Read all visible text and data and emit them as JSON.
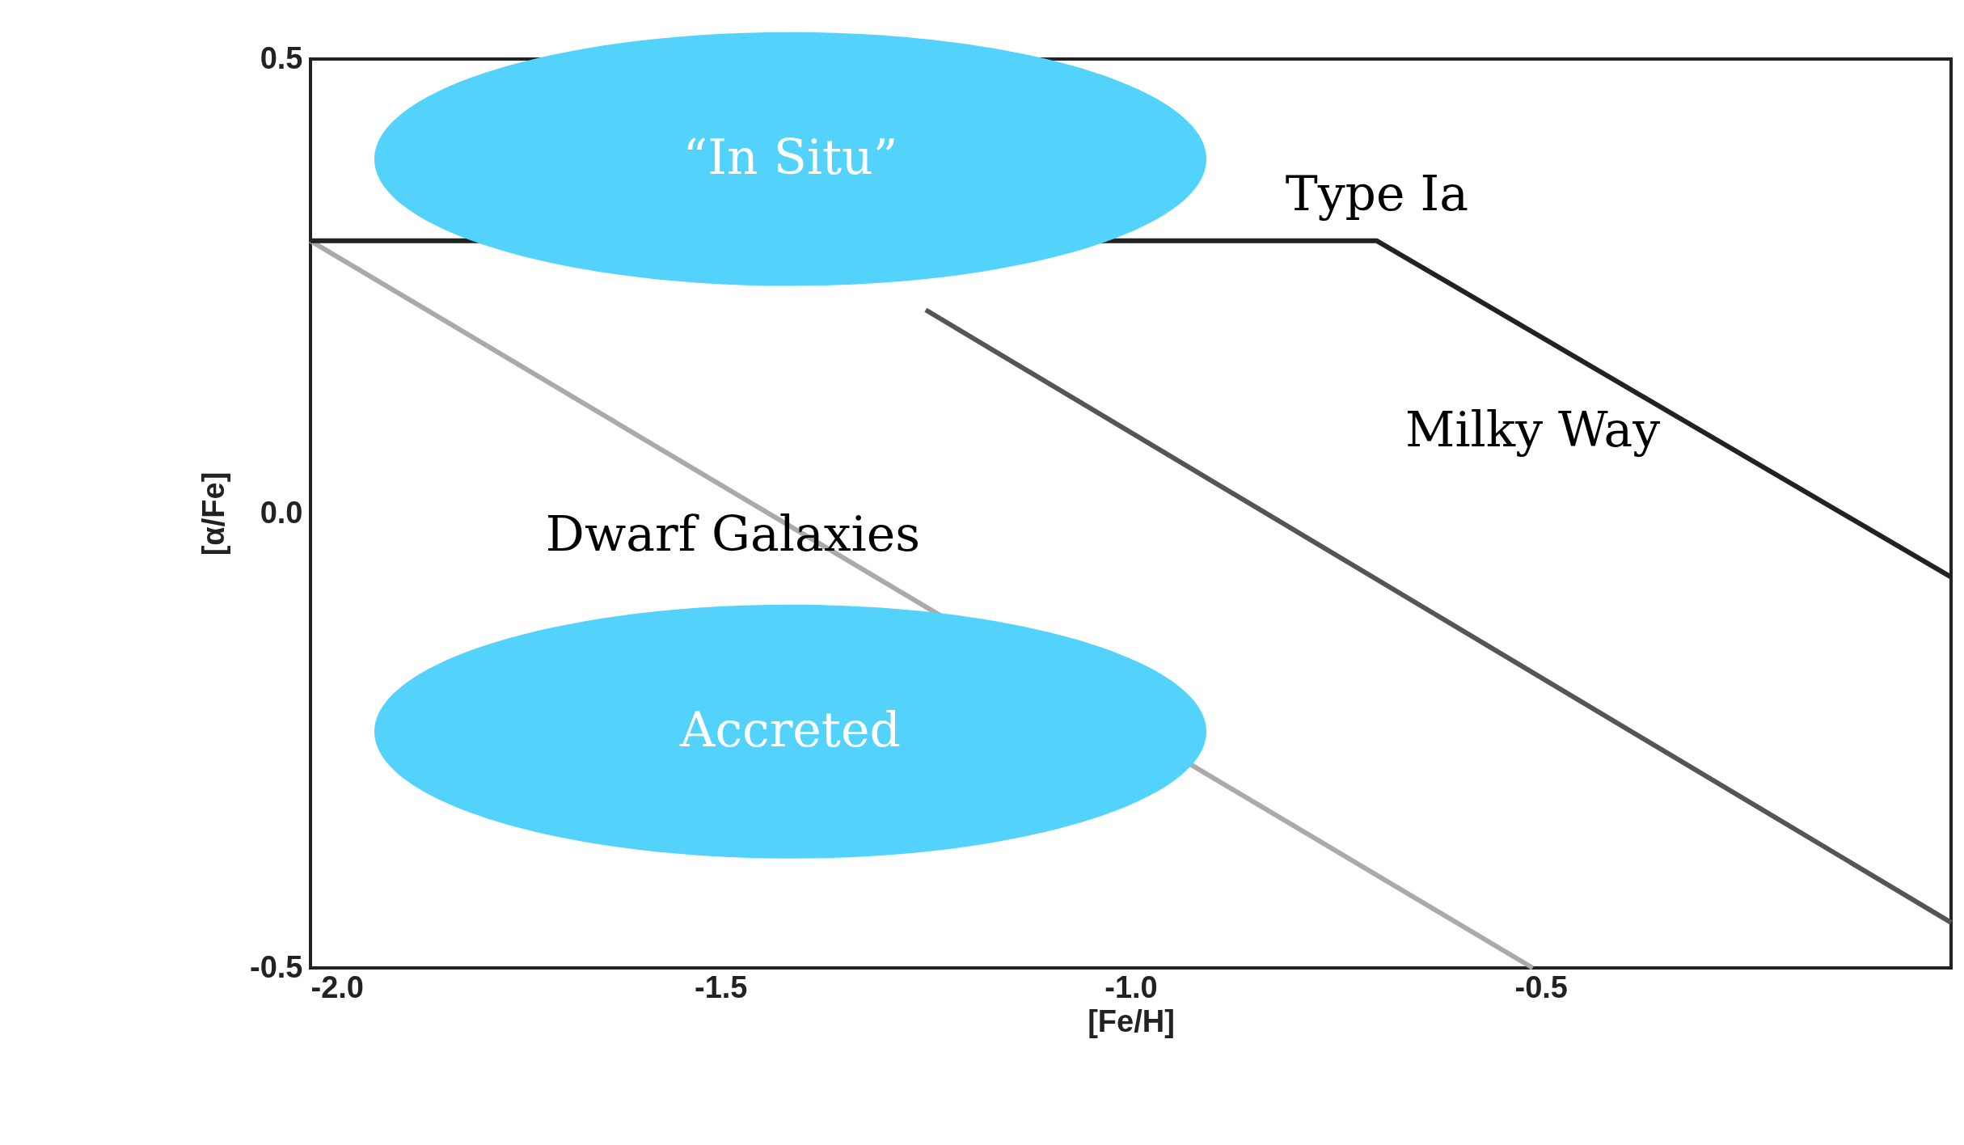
{
  "chart_data": {
    "type": "line",
    "xlabel": "[Fe/H]",
    "ylabel": "[α/Fe]",
    "xlim": [
      -2.0,
      0.0
    ],
    "ylim": [
      -0.5,
      0.5
    ],
    "xticks": [
      {
        "value": -2.0,
        "label": "-2.0"
      },
      {
        "value": -1.5,
        "label": "-1.5"
      },
      {
        "value": -1.0,
        "label": "-1.0"
      },
      {
        "value": -0.5,
        "label": "-0.5"
      }
    ],
    "yticks": [
      {
        "value": -0.5,
        "label": "-0.5"
      },
      {
        "value": 0.0,
        "label": "0.0"
      },
      {
        "value": 0.5,
        "label": "0.5"
      }
    ],
    "grid": false,
    "marker": "none",
    "line_style": "solid",
    "series": [
      {
        "color": "#aaaaaa",
        "x": [
          -2.0,
          -0.51
        ],
        "values": [
          0.3,
          -0.5
        ]
      },
      {
        "color": "#555555",
        "x": [
          -1.25,
          0.0
        ],
        "values": [
          0.224,
          -0.45
        ]
      },
      {
        "color": "#222222",
        "x": [
          -2.0,
          -0.7,
          0.0
        ],
        "values": [
          0.3,
          0.3,
          -0.07
        ]
      }
    ],
    "annotations": [
      "Type Ia",
      "Milky Way",
      "Dwarf Galaxies",
      "“In Situ”",
      "Accreted"
    ]
  }
}
